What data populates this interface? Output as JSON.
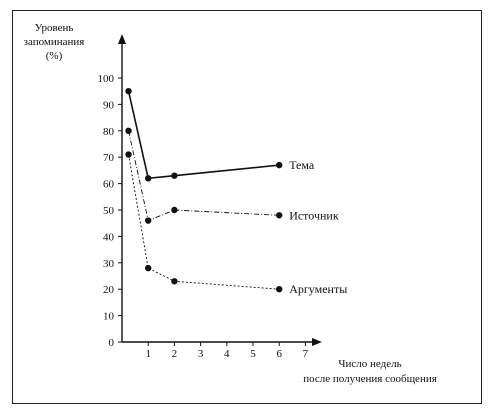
{
  "chart_data": {
    "type": "line",
    "ylabel_lines": [
      "Уровень",
      "запоминания",
      "(%)"
    ],
    "xlabel_lines": [
      "Число недель",
      "после получения сообщения"
    ],
    "xlim": [
      0,
      7
    ],
    "ylim": [
      0,
      100
    ],
    "x_ticks": [
      "1",
      "2",
      "3",
      "4",
      "5",
      "6",
      "7"
    ],
    "y_ticks": [
      "0",
      "10",
      "20",
      "30",
      "40",
      "50",
      "60",
      "70",
      "80",
      "90",
      "100"
    ],
    "grid": false,
    "series": [
      {
        "name": "Тема",
        "style": "solid",
        "x": [
          0.25,
          1,
          2,
          6
        ],
        "y": [
          95,
          62,
          63,
          67
        ]
      },
      {
        "name": "Источник",
        "style": "dashdot",
        "x": [
          0.25,
          1,
          2,
          6
        ],
        "y": [
          80,
          46,
          50,
          48
        ]
      },
      {
        "name": "Аргументы",
        "style": "dotted",
        "x": [
          0.25,
          1,
          2,
          6
        ],
        "y": [
          71,
          28,
          23,
          20
        ]
      }
    ],
    "colors": {
      "ink": "#111111"
    }
  }
}
